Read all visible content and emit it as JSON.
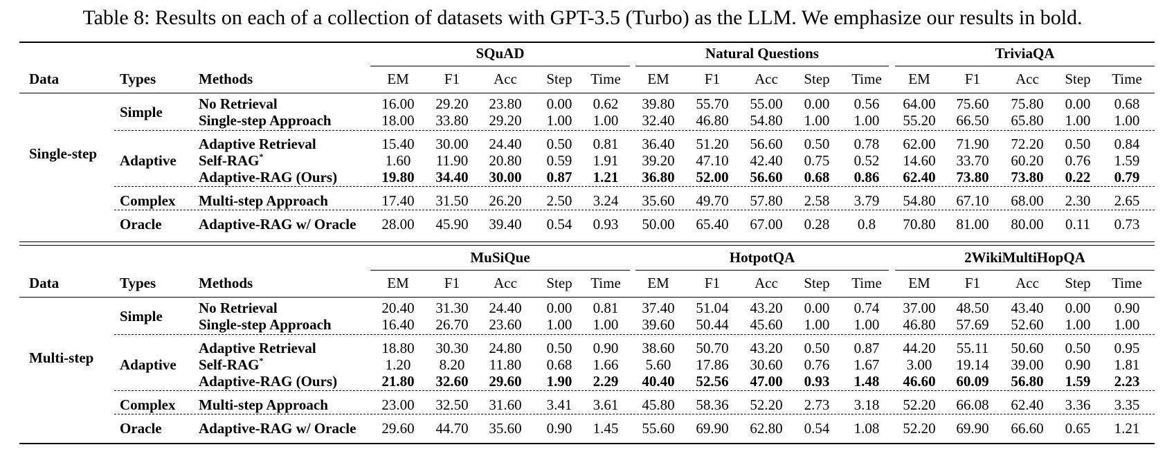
{
  "caption": "Table 8: Results on each of a collection of datasets with GPT-3.5 (Turbo) as the LLM. We emphasize our results in bold.",
  "columns": [
    "EM",
    "F1",
    "Acc",
    "Step",
    "Time"
  ],
  "header_labels": {
    "data": "Data",
    "types": "Types",
    "methods": "Methods"
  },
  "blocks": [
    {
      "data_label": "Single-step",
      "datasets": [
        "SQuAD",
        "Natural Questions",
        "TriviaQA"
      ],
      "rows": [
        {
          "type": "Simple",
          "method": "No Retrieval",
          "sup": "",
          "bold": false,
          "values": [
            "16.00",
            "29.20",
            "23.80",
            "0.00",
            "0.62",
            "39.80",
            "55.70",
            "55.00",
            "0.00",
            "0.56",
            "64.00",
            "75.60",
            "75.80",
            "0.00",
            "0.68"
          ]
        },
        {
          "type": "",
          "method": "Single-step Approach",
          "sup": "",
          "bold": false,
          "values": [
            "18.00",
            "33.80",
            "29.20",
            "1.00",
            "1.00",
            "32.40",
            "46.80",
            "54.80",
            "1.00",
            "1.00",
            "55.20",
            "66.50",
            "65.80",
            "1.00",
            "1.00"
          ]
        },
        {
          "type": "",
          "method": "Adaptive Retrieval",
          "sup": "",
          "bold": false,
          "values": [
            "15.40",
            "30.00",
            "24.40",
            "0.50",
            "0.81",
            "36.40",
            "51.20",
            "56.60",
            "0.50",
            "0.78",
            "62.00",
            "71.90",
            "72.20",
            "0.50",
            "0.84"
          ]
        },
        {
          "type": "Adaptive",
          "method": "Self-RAG",
          "sup": "*",
          "bold": false,
          "values": [
            "1.60",
            "11.90",
            "20.80",
            "0.59",
            "1.91",
            "39.20",
            "47.10",
            "42.40",
            "0.75",
            "0.52",
            "14.60",
            "33.70",
            "60.20",
            "0.76",
            "1.59"
          ]
        },
        {
          "type": "",
          "method": "Adaptive-RAG (Ours)",
          "sup": "",
          "bold": true,
          "values": [
            "19.80",
            "34.40",
            "30.00",
            "0.87",
            "1.21",
            "36.80",
            "52.00",
            "56.60",
            "0.68",
            "0.86",
            "62.40",
            "73.80",
            "73.80",
            "0.22",
            "0.79"
          ]
        },
        {
          "type": "Complex",
          "method": "Multi-step Approach",
          "sup": "",
          "bold": false,
          "values": [
            "17.40",
            "31.50",
            "26.20",
            "2.50",
            "3.24",
            "35.60",
            "49.70",
            "57.80",
            "2.58",
            "3.79",
            "54.80",
            "67.10",
            "68.00",
            "2.30",
            "2.65"
          ]
        },
        {
          "type": "Oracle",
          "method": "Adaptive-RAG w/ Oracle",
          "sup": "",
          "bold": false,
          "values": [
            "28.00",
            "45.90",
            "39.40",
            "0.54",
            "0.93",
            "50.00",
            "65.40",
            "67.00",
            "0.28",
            "0.8",
            "70.80",
            "81.00",
            "80.00",
            "0.11",
            "0.73"
          ]
        }
      ]
    },
    {
      "data_label": "Multi-step",
      "datasets": [
        "MuSiQue",
        "HotpotQA",
        "2WikiMultiHopQA"
      ],
      "rows": [
        {
          "type": "Simple",
          "method": "No Retrieval",
          "sup": "",
          "bold": false,
          "values": [
            "20.40",
            "31.30",
            "24.40",
            "0.00",
            "0.81",
            "37.40",
            "51.04",
            "43.20",
            "0.00",
            "0.74",
            "37.00",
            "48.50",
            "43.40",
            "0.00",
            "0.90"
          ]
        },
        {
          "type": "",
          "method": "Single-step Approach",
          "sup": "",
          "bold": false,
          "values": [
            "16.40",
            "26.70",
            "23.60",
            "1.00",
            "1.00",
            "39.60",
            "50.44",
            "45.60",
            "1.00",
            "1.00",
            "46.80",
            "57.69",
            "52.60",
            "1.00",
            "1.00"
          ]
        },
        {
          "type": "",
          "method": "Adaptive Retrieval",
          "sup": "",
          "bold": false,
          "values": [
            "18.80",
            "30.30",
            "24.80",
            "0.50",
            "0.90",
            "38.60",
            "50.70",
            "43.20",
            "0.50",
            "0.87",
            "44.20",
            "55.11",
            "50.60",
            "0.50",
            "0.95"
          ]
        },
        {
          "type": "Adaptive",
          "method": "Self-RAG",
          "sup": "*",
          "bold": false,
          "values": [
            "1.20",
            "8.20",
            "11.80",
            "0.68",
            "1.66",
            "5.60",
            "17.86",
            "30.60",
            "0.76",
            "1.67",
            "3.00",
            "19.14",
            "39.00",
            "0.90",
            "1.81"
          ]
        },
        {
          "type": "",
          "method": "Adaptive-RAG (Ours)",
          "sup": "",
          "bold": true,
          "values": [
            "21.80",
            "32.60",
            "29.60",
            "1.90",
            "2.29",
            "40.40",
            "52.56",
            "47.00",
            "0.93",
            "1.48",
            "46.60",
            "60.09",
            "56.80",
            "1.59",
            "2.23"
          ]
        },
        {
          "type": "Complex",
          "method": "Multi-step Approach",
          "sup": "",
          "bold": false,
          "values": [
            "23.00",
            "32.50",
            "31.60",
            "3.41",
            "3.61",
            "45.80",
            "58.36",
            "52.20",
            "2.73",
            "3.18",
            "52.20",
            "66.08",
            "62.40",
            "3.36",
            "3.35"
          ]
        },
        {
          "type": "Oracle",
          "method": "Adaptive-RAG w/ Oracle",
          "sup": "",
          "bold": false,
          "values": [
            "29.60",
            "44.70",
            "35.60",
            "0.90",
            "1.45",
            "55.60",
            "69.90",
            "62.80",
            "0.54",
            "1.08",
            "52.20",
            "69.90",
            "66.60",
            "0.65",
            "1.21"
          ]
        }
      ]
    }
  ]
}
